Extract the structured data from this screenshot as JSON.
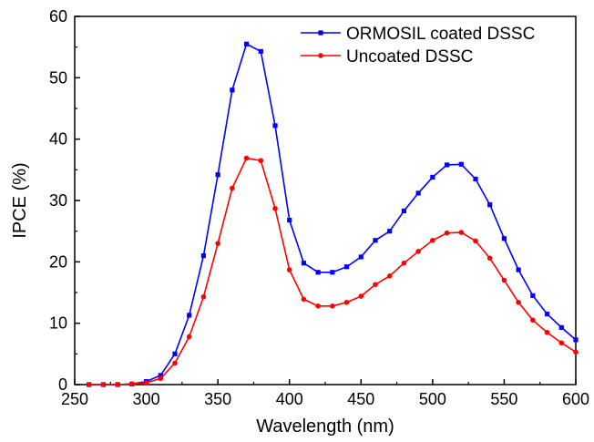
{
  "chart_data": {
    "type": "line",
    "xlabel": "Wavelength (nm)",
    "ylabel": "IPCE (%)",
    "xlim": [
      250,
      600
    ],
    "ylim": [
      0,
      60
    ],
    "xticks": [
      250,
      300,
      350,
      400,
      450,
      500,
      550,
      600
    ],
    "yticks": [
      0,
      10,
      20,
      30,
      40,
      50,
      60
    ],
    "xtick_labels": [
      "250",
      "300",
      "350",
      "400",
      "450",
      "500",
      "550",
      "600"
    ],
    "ytick_labels": [
      "0",
      "10",
      "20",
      "30",
      "40",
      "50",
      "60"
    ],
    "grid": false,
    "legend_position": "top-right",
    "x": [
      260,
      270,
      280,
      290,
      300,
      310,
      320,
      330,
      340,
      350,
      360,
      370,
      380,
      390,
      400,
      410,
      420,
      430,
      440,
      450,
      460,
      470,
      480,
      490,
      500,
      510,
      520,
      530,
      540,
      550,
      560,
      570,
      580,
      590,
      600
    ],
    "series": [
      {
        "name": "ORMOSIL coated DSSC",
        "color": "#0000ff",
        "marker": "square",
        "values": [
          0,
          0,
          0,
          0.1,
          0.5,
          1.5,
          5.0,
          11.3,
          21.0,
          34.2,
          48.0,
          55.5,
          54.3,
          42.2,
          26.8,
          19.8,
          18.3,
          18.3,
          19.2,
          20.8,
          23.5,
          25.0,
          28.3,
          31.2,
          33.8,
          35.8,
          35.9,
          33.5,
          29.3,
          23.8,
          18.7,
          14.5,
          11.5,
          9.3,
          7.3
        ]
      },
      {
        "name": "Uncoated DSSC",
        "color": "#ff0000",
        "marker": "circle",
        "values": [
          0,
          0,
          0,
          0.1,
          0.3,
          1.0,
          3.5,
          7.8,
          14.3,
          23.0,
          32.0,
          36.9,
          36.5,
          28.7,
          18.7,
          13.9,
          12.8,
          12.8,
          13.4,
          14.4,
          16.3,
          17.7,
          19.8,
          21.7,
          23.5,
          24.7,
          24.8,
          23.4,
          20.6,
          17.0,
          13.4,
          10.5,
          8.5,
          6.8,
          5.3
        ]
      }
    ]
  }
}
